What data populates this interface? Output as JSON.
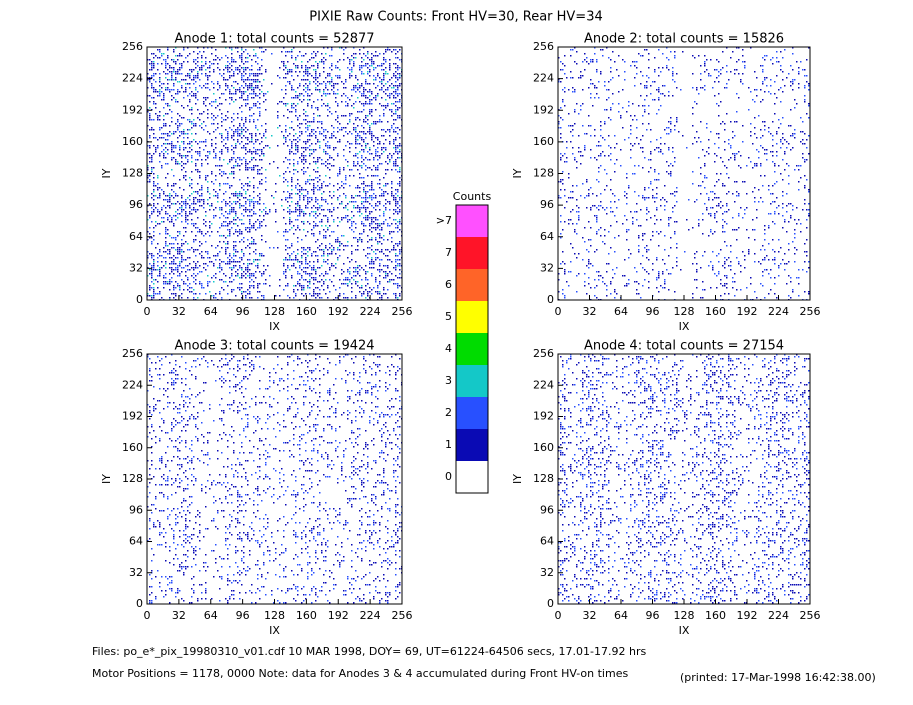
{
  "title": "PIXIE Raw Counts:  Front HV=30, Rear HV=34",
  "chart_data": [
    {
      "type": "heatmap",
      "title": "Anode 1: total counts = 52877",
      "x_label": "IX",
      "y_label": "IY",
      "xlim": [
        0,
        256
      ],
      "ylim": [
        0,
        256
      ],
      "xticks": [
        0,
        32,
        64,
        96,
        128,
        160,
        192,
        224,
        256
      ],
      "yticks": [
        0,
        32,
        64,
        96,
        128,
        160,
        192,
        224,
        256
      ]
    },
    {
      "type": "heatmap",
      "title": "Anode 2: total counts = 15826",
      "x_label": "IX",
      "y_label": "IY",
      "xlim": [
        0,
        256
      ],
      "ylim": [
        0,
        256
      ],
      "xticks": [
        0,
        32,
        64,
        96,
        128,
        160,
        192,
        224,
        256
      ],
      "yticks": [
        0,
        32,
        64,
        96,
        128,
        160,
        192,
        224,
        256
      ]
    },
    {
      "type": "heatmap",
      "title": "Anode 3: total counts = 19424",
      "x_label": "IX",
      "y_label": "IY",
      "xlim": [
        0,
        256
      ],
      "ylim": [
        0,
        256
      ],
      "xticks": [
        0,
        32,
        64,
        96,
        128,
        160,
        192,
        224,
        256
      ],
      "yticks": [
        0,
        32,
        64,
        96,
        128,
        160,
        192,
        224,
        256
      ]
    },
    {
      "type": "heatmap",
      "title": "Anode 4: total counts = 27154",
      "x_label": "IX",
      "y_label": "IY",
      "xlim": [
        0,
        256
      ],
      "ylim": [
        0,
        256
      ],
      "xticks": [
        0,
        32,
        64,
        96,
        128,
        160,
        192,
        224,
        256
      ],
      "yticks": [
        0,
        32,
        64,
        96,
        128,
        160,
        192,
        224,
        256
      ]
    }
  ],
  "colorbar": {
    "title": "Counts",
    "labels": [
      0,
      1,
      2,
      3,
      4,
      5,
      6,
      7,
      ">7"
    ],
    "colors": [
      "#ffffff",
      "#0a0ab4",
      "#2850ff",
      "#14c8c8",
      "#00dc00",
      "#ffff00",
      "#ff6428",
      "#ff1428",
      "#ff50ff"
    ]
  },
  "footer": {
    "files": "Files: po_e*_pix_19980310_v01.cdf    10 MAR 1998, DOY= 69, UT=61224-64506 secs, 17.01-17.92 hrs",
    "motor": "Motor Positions = 1178, 0000   Note: data for Anodes 3 & 4 accumulated during Front HV-on times",
    "printed": "(printed: 17-Mar-1998 16:42:38.00)"
  }
}
